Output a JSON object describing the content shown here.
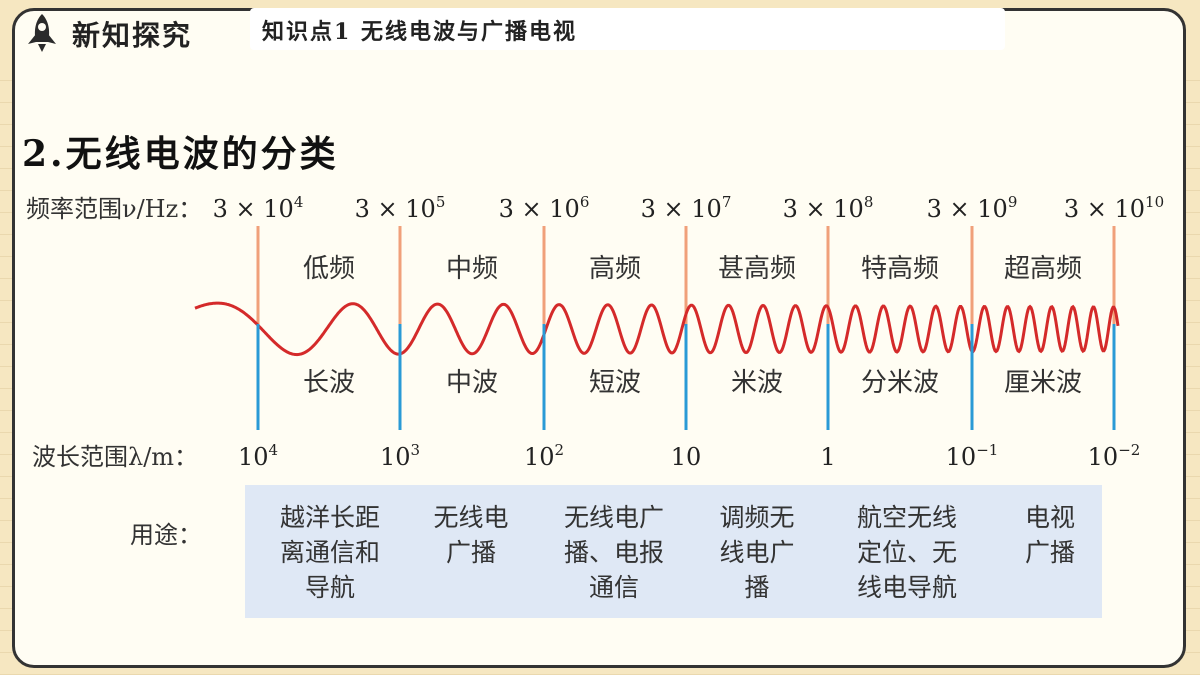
{
  "header": {
    "section_title": "新知探究",
    "topic": "知识点1  无线电波与广播电视",
    "rocket_icon": "rocket-icon"
  },
  "main_heading": "2.无线电波的分类",
  "frequency_row": {
    "label": "频率范围ν/Hz：",
    "ticks": [
      {
        "base": "3 × 10",
        "exp": "4"
      },
      {
        "base": "3 × 10",
        "exp": "5"
      },
      {
        "base": "3 × 10",
        "exp": "6"
      },
      {
        "base": "3 × 10",
        "exp": "7"
      },
      {
        "base": "3 × 10",
        "exp": "8"
      },
      {
        "base": "3 × 10",
        "exp": "9"
      },
      {
        "base": "3 × 10",
        "exp": "10"
      }
    ]
  },
  "frequency_bands": [
    "低频",
    "中频",
    "高频",
    "甚高频",
    "特高频",
    "超高频"
  ],
  "wave_bands": [
    "长波",
    "中波",
    "短波",
    "米波",
    "分米波",
    "厘米波"
  ],
  "wavelength_row": {
    "label": "波长范围λ/m：",
    "ticks": [
      {
        "base": "10",
        "exp": "4"
      },
      {
        "base": "10",
        "exp": "3"
      },
      {
        "base": "10",
        "exp": "2"
      },
      {
        "base": "10",
        "exp": ""
      },
      {
        "base": "1",
        "exp": ""
      },
      {
        "base": "10",
        "exp": "−1"
      },
      {
        "base": "10",
        "exp": "−2"
      }
    ]
  },
  "usage": {
    "label": "用途：",
    "items": [
      "越洋长距\n离通信和\n导航",
      "无线电\n广播",
      "无线电广\n播、电报\n通信",
      "调频无\n线电广\n播",
      "航空无线\n定位、无\n线电导航",
      "电视\n广播"
    ]
  },
  "colors": {
    "wave": "#d42a2a",
    "freq_marker": "#f0a07a",
    "wave_marker": "#2a9ad6",
    "usage_bg": "#dfe8f5"
  }
}
